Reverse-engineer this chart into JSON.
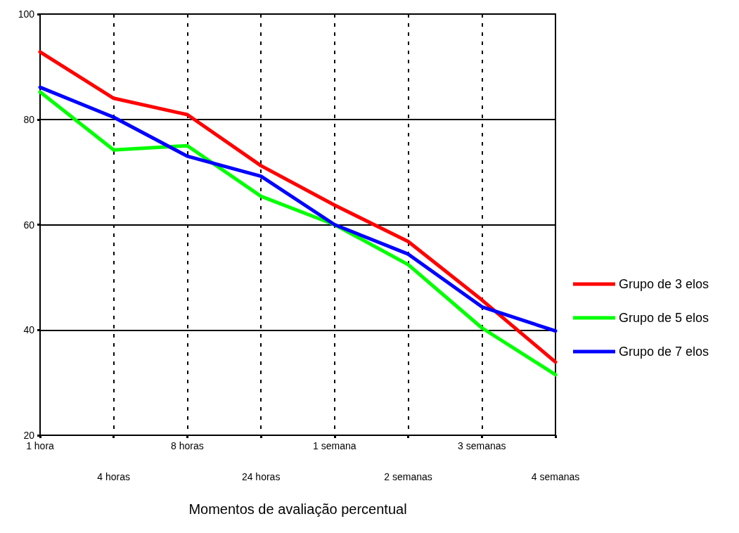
{
  "chart_data": {
    "type": "line",
    "xlabel": "Momentos de avaliação percentual",
    "categories": [
      "1 hora",
      "4 horas",
      "8 horas",
      "24 horas",
      "1 semana",
      "2 semanas",
      "3 semanas",
      "4 semanas"
    ],
    "series": [
      {
        "name": "Grupo de 3 elos",
        "color": "#ff0000",
        "values": [
          92.8,
          84.0,
          80.9,
          71.2,
          63.7,
          56.8,
          45.7,
          33.9
        ]
      },
      {
        "name": "Grupo de 5 elos",
        "color": "#00ff00",
        "values": [
          85.2,
          74.2,
          75.0,
          65.4,
          60.0,
          52.4,
          40.4,
          31.5
        ]
      },
      {
        "name": "Grupo de 7 elos",
        "color": "#0000ff",
        "values": [
          86.1,
          80.4,
          73.0,
          69.2,
          60.0,
          54.4,
          44.4,
          39.8
        ]
      }
    ],
    "ylim": [
      20,
      100
    ],
    "yticks": [
      20,
      40,
      60,
      80,
      100
    ],
    "grid": true,
    "legend": "right",
    "marker": "none",
    "line_style": "solid"
  }
}
